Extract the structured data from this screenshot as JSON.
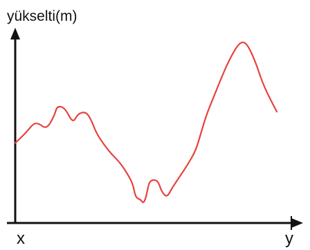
{
  "chart_data": {
    "type": "line",
    "title": "",
    "ylabel": "yükselti(m)",
    "xlabel": "",
    "x_start_label": "x",
    "x_end_label": "y",
    "x_ticks": [],
    "y_ticks": [],
    "grid": false,
    "colors": {
      "line": "#e8413d",
      "axes": "#111111"
    },
    "series": [
      {
        "x": [
          0,
          4,
          7,
          9,
          12,
          15,
          16,
          19,
          22,
          24,
          27,
          29,
          31,
          34,
          37,
          40,
          43,
          45,
          46,
          48,
          49,
          50,
          51,
          52,
          54,
          55,
          56,
          58,
          60,
          63,
          66,
          69,
          71,
          73,
          76,
          79,
          82,
          85,
          87,
          89,
          92,
          95,
          100
        ],
        "y": [
          41,
          46,
          51,
          51,
          48,
          55,
          60,
          59,
          51,
          56,
          57,
          53,
          46,
          40,
          35,
          31,
          25,
          20,
          13,
          12,
          10,
          13,
          20,
          22,
          22,
          20,
          16,
          13,
          18,
          24,
          30,
          37,
          46,
          55,
          65,
          75,
          84,
          91,
          93,
          91,
          82,
          70,
          57
        ]
      }
    ]
  }
}
